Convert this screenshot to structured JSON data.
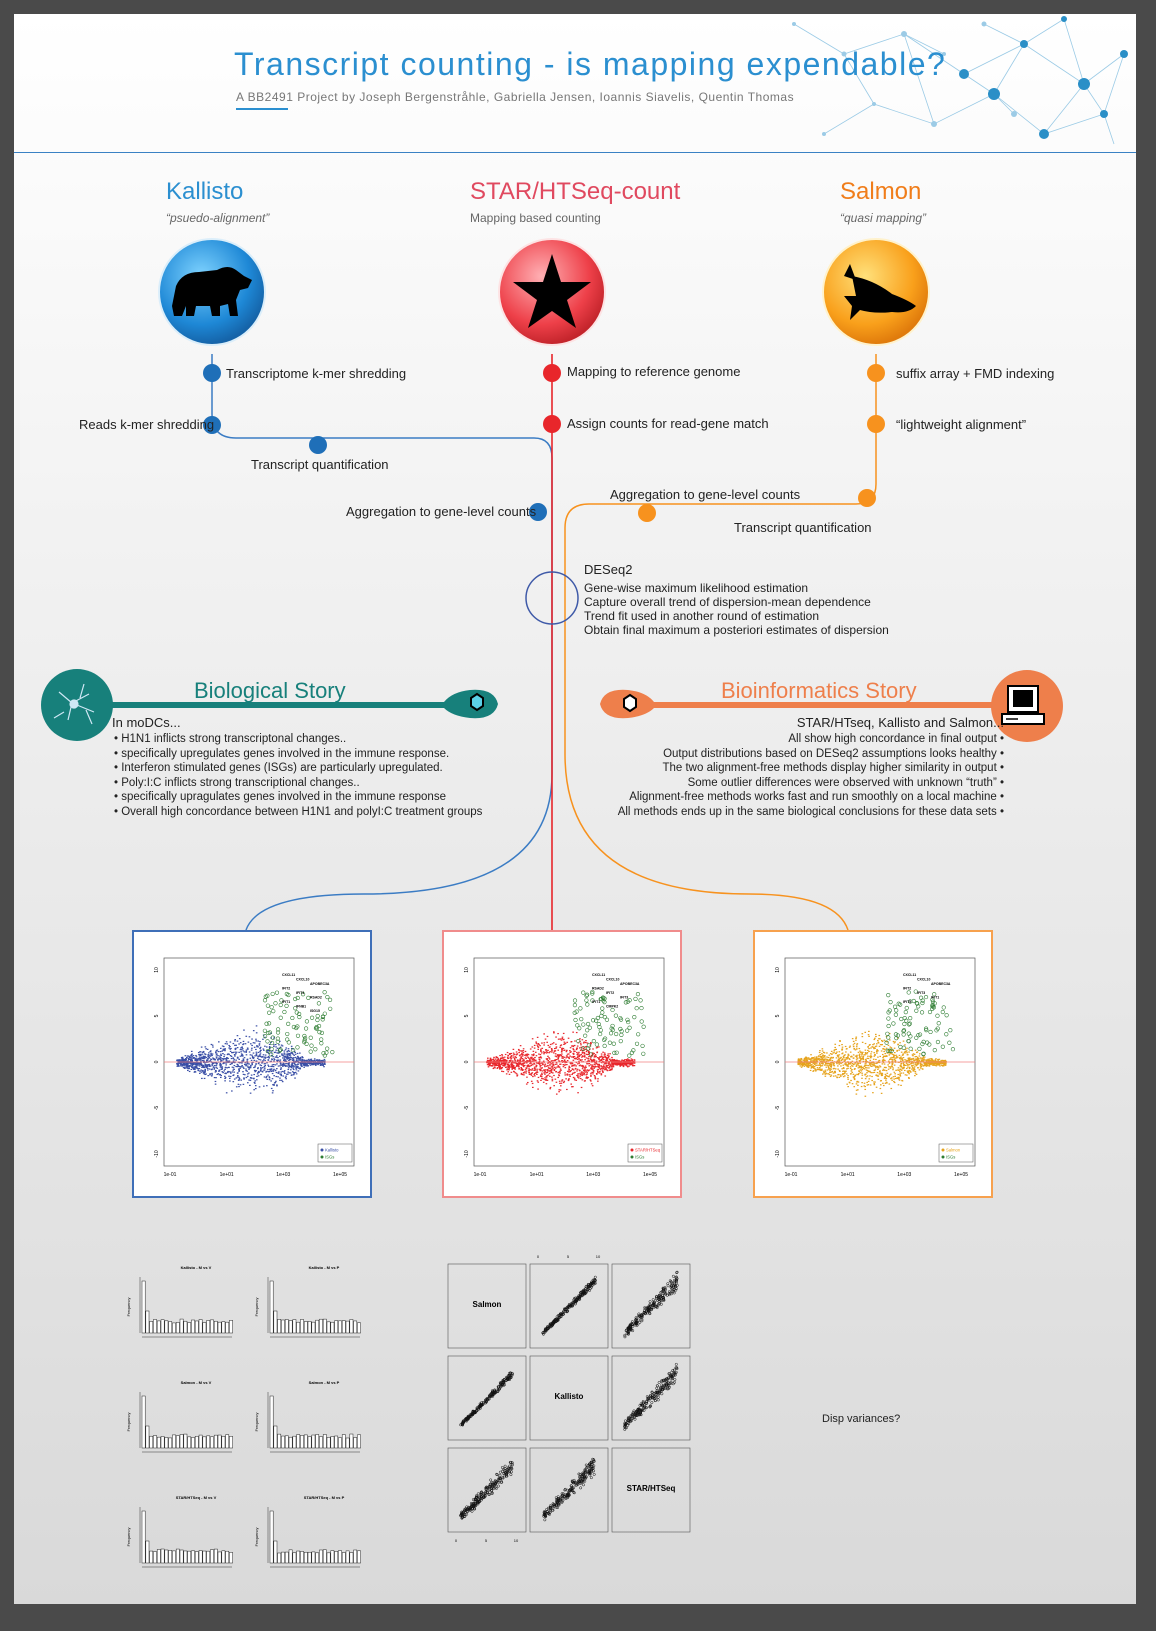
{
  "header": {
    "title": "Transcript counting - is mapping expendable?",
    "subtitle": "A BB2491 Project by Joseph Bergenstråhle, Gabriella Jensen, Ioannis Siavelis, Quentin Thomas"
  },
  "methods": {
    "kallisto": {
      "name": "Kallisto",
      "desc": "“psuedo-alignment”",
      "icon": "bear-icon"
    },
    "star": {
      "name": "STAR/HTSeq-count",
      "desc": "Mapping based counting",
      "icon": "star-icon"
    },
    "salmon": {
      "name": "Salmon",
      "desc": "“quasi mapping”",
      "icon": "fish-icon"
    }
  },
  "steps": {
    "k1": "Transcriptome k-mer shredding",
    "k2": "Reads k-mer shredding",
    "k3": "Transcript quantification",
    "k4": "Aggregation to gene-level counts",
    "s1": "Mapping to reference genome",
    "s2": "Assign counts for read-gene match",
    "m1": "suffix array + FMD indexing",
    "m2": "“lightweight alignment”",
    "m3": "Aggregation to gene-level counts",
    "m4": "Transcript quantification"
  },
  "deseq": {
    "title": "DESeq2",
    "lines": [
      "Gene-wise maximum likelihood estimation",
      "Capture overall trend of dispersion-mean dependence",
      "Trend fit used in another round of estimation",
      "Obtain final maximum a posteriori estimates of dispersion"
    ]
  },
  "bio": {
    "title": "Biological Story",
    "intro": "In moDCs...",
    "items": [
      "• H1N1 inflicts strong transcriptonal changes..",
      "• specifically upregulates genes involved in the immune response.",
      "• Interferon stimulated genes (ISGs) are particularly upregulated.",
      "• Poly:I:C inflicts strong transcriptional changes..",
      "• specifically upragulates genes involved in the immune response",
      "• Overall high concordance between H1N1 and polyI:C treatment groups"
    ]
  },
  "bioinfo": {
    "title": "Bioinformatics Story",
    "intro": "STAR/HTseq, Kallisto and Salmon...",
    "items": [
      "All show high concordance in final output •",
      "Output distributions based on DESeq2 assumptions looks healthy •",
      "The two alignment-free methods display higher similarity in output •",
      "Some outlier differences were observed with unknown “truth” •",
      "Alignment-free methods works fast and run smoothly on a local machine •",
      "All methods ends up in the same biological conclusions for these data sets •"
    ]
  },
  "maplots": {
    "yticks": [
      "10",
      "5",
      "0",
      "-5",
      "-10"
    ],
    "xticks": [
      "1e-01",
      "1e+01",
      "1e+03",
      "1e+05"
    ],
    "panels": [
      {
        "legend": [
          "Kallisto",
          "ISGs"
        ],
        "color": "#3a4fa6",
        "genes": [
          "CXCL11",
          "CXCL10",
          "APOBEC3A",
          "IFIT2",
          "IFIT3",
          "RSAD2",
          "IFIT1",
          "IFNB1",
          "ISG15"
        ]
      },
      {
        "legend": [
          "STAR/HTSeq",
          "ISGs"
        ],
        "color": "#e8262b",
        "genes": [
          "CXCL11",
          "CXCL10",
          "APOBEC3A",
          "RSAD2",
          "IFIT2",
          "IFIT3",
          "IFIT1",
          "CMPK2"
        ]
      },
      {
        "legend": [
          "Salmon",
          "ISGs"
        ],
        "color": "#e6a31c",
        "genes": [
          "CXCL11",
          "CXCL10",
          "APOBEC3A",
          "IFIT2",
          "IFIT3",
          "IFIT1",
          "IFIT5"
        ]
      }
    ]
  },
  "histograms": [
    {
      "title": "Kallisto - M vs V",
      "ylabel": "Frequency"
    },
    {
      "title": "Kallisto - M vs P",
      "ylabel": "Frequency"
    },
    {
      "title": "Salmon - M vs V",
      "ylabel": "Frequency"
    },
    {
      "title": "Salmon - M vs P",
      "ylabel": "Frequency"
    },
    {
      "title": "STAR/HTSeq - M vs V",
      "ylabel": "Frequency"
    },
    {
      "title": "STAR/HTSeq - M vs P",
      "ylabel": "Frequency"
    }
  ],
  "pairs": {
    "labels": [
      "Salmon",
      "Kallisto",
      "STAR/HTSeq"
    ],
    "ticks": [
      "0",
      "5",
      "10"
    ]
  },
  "disp_note": "Disp variances?",
  "colors": {
    "kallisto": "#1f6fb8",
    "star": "#e8262b",
    "salmon": "#f7921e",
    "bio": "#17807b",
    "bioinfo": "#ee7f4b"
  }
}
